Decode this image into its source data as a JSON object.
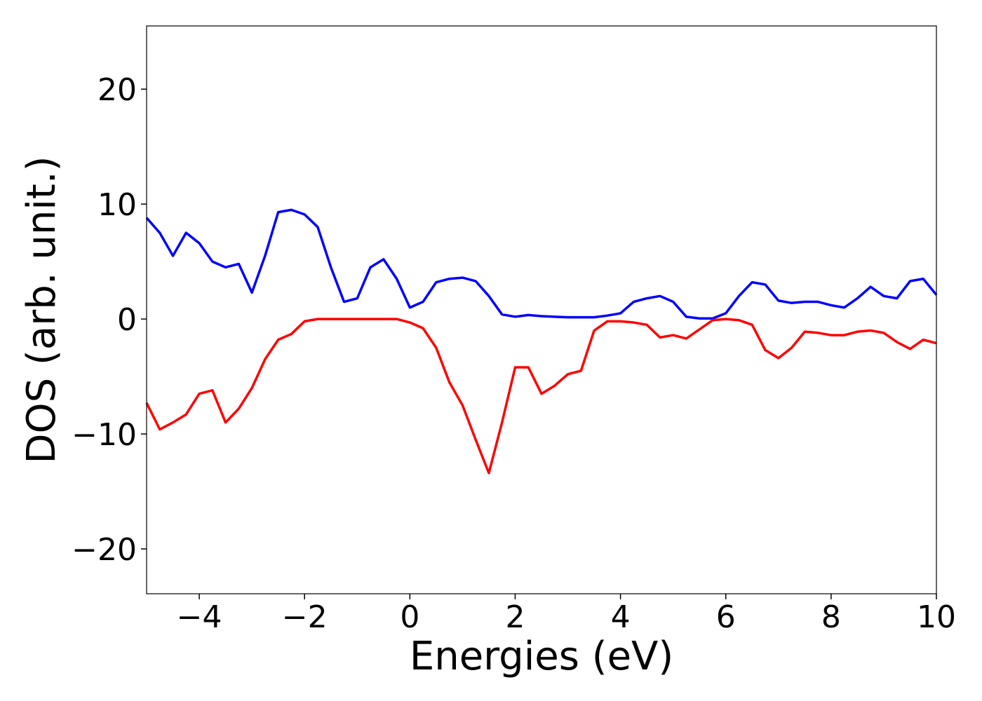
{
  "chart_data": {
    "type": "line",
    "xlabel": "Energies (eV)",
    "ylabel": "DOS (arb. unit.)",
    "xlim": [
      -5,
      10
    ],
    "ylim": [
      -23.9,
      25.5
    ],
    "xticks": [
      {
        "value": -4,
        "label": "−4"
      },
      {
        "value": -2,
        "label": "−2"
      },
      0,
      2,
      4,
      6,
      8,
      10
    ],
    "yticks": [
      {
        "value": -20,
        "label": "−20"
      },
      {
        "value": -10,
        "label": "−10"
      },
      0,
      10,
      20
    ],
    "x": [
      -5,
      -4.75,
      -4.5,
      -4.25,
      -4,
      -3.75,
      -3.5,
      -3.25,
      -3,
      -2.75,
      -2.5,
      -2.25,
      -2,
      -1.75,
      -1.5,
      -1.25,
      -1,
      -0.75,
      -0.5,
      -0.25,
      0,
      0.25,
      0.5,
      0.75,
      1,
      1.25,
      1.5,
      1.75,
      2,
      2.25,
      2.5,
      2.75,
      3,
      3.25,
      3.5,
      3.75,
      4,
      4.25,
      4.5,
      4.75,
      5,
      5.25,
      5.5,
      5.75,
      6,
      6.25,
      6.5,
      6.75,
      7,
      7.25,
      7.5,
      7.75,
      8,
      8.25,
      8.5,
      8.75,
      9,
      9.25,
      9.5,
      9.75,
      10
    ],
    "series": [
      {
        "color": "#0000ff",
        "values": [
          8.8,
          7.5,
          5.5,
          7.5,
          6.6,
          5.0,
          4.5,
          4.8,
          2.3,
          5.5,
          9.3,
          9.5,
          9.1,
          8.0,
          4.5,
          1.5,
          1.8,
          4.5,
          5.2,
          3.5,
          1.0,
          1.5,
          3.2,
          3.5,
          3.6,
          3.3,
          2.0,
          0.4,
          0.2,
          0.35,
          0.25,
          0.2,
          0.15,
          0.15,
          0.15,
          0.3,
          0.5,
          1.5,
          1.8,
          2.0,
          1.5,
          0.2,
          0.05,
          0.05,
          0.5,
          2.0,
          3.2,
          3.0,
          1.6,
          1.4,
          1.5,
          1.5,
          1.2,
          1.0,
          1.8,
          2.8,
          2.0,
          1.8,
          3.3,
          3.5,
          2.1
        ]
      },
      {
        "color": "#ff0000",
        "values": [
          -7.3,
          -9.6,
          -9.0,
          -8.3,
          -6.5,
          -6.2,
          -9.0,
          -7.8,
          -6.0,
          -3.5,
          -1.8,
          -1.3,
          -0.2,
          0,
          0,
          0,
          0,
          0,
          0,
          0,
          -0.3,
          -0.8,
          -2.5,
          -5.5,
          -7.5,
          -10.5,
          -13.4,
          -9.0,
          -4.2,
          -4.2,
          -6.5,
          -5.8,
          -4.8,
          -4.5,
          -1.0,
          -0.2,
          -0.2,
          -0.3,
          -0.5,
          -1.6,
          -1.4,
          -1.7,
          -0.9,
          -0.1,
          0,
          -0.1,
          -0.5,
          -2.7,
          -3.4,
          -2.5,
          -1.1,
          -1.2,
          -1.4,
          -1.4,
          -1.1,
          -1.0,
          -1.2,
          -2.0,
          -2.6,
          -1.8,
          -2.1
        ]
      }
    ]
  }
}
